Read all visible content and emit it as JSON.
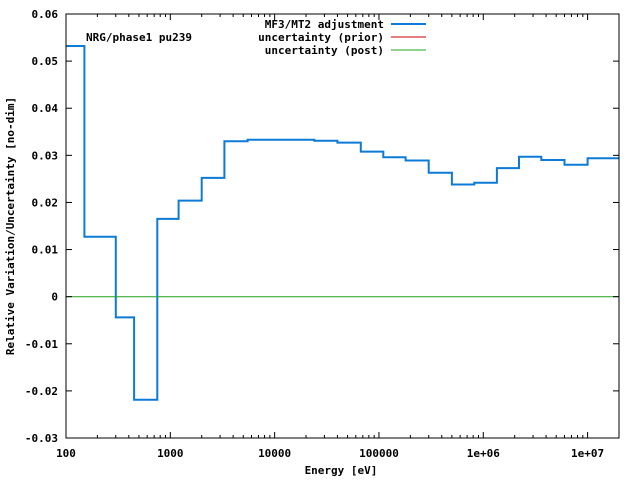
{
  "chart_data": {
    "type": "line",
    "title": "",
    "annotation": "NRG/phase1 pu239",
    "xlabel": "Energy [eV]",
    "ylabel": "Relative Variation/Uncertainty [no-dim]",
    "xscale": "log",
    "xlim": [
      100,
      20000000
    ],
    "ylim": [
      -0.03,
      0.06
    ],
    "grid": false,
    "legend_position": "top-center",
    "x_ticks": [
      {
        "value": 100,
        "label": "100"
      },
      {
        "value": 1000,
        "label": "1000"
      },
      {
        "value": 10000,
        "label": "10000"
      },
      {
        "value": 100000,
        "label": "100000"
      },
      {
        "value": 1000000,
        "label": "1e+06"
      },
      {
        "value": 10000000,
        "label": "1e+07"
      }
    ],
    "y_ticks": [
      {
        "value": -0.03,
        "label": "-0.03"
      },
      {
        "value": -0.02,
        "label": "-0.02"
      },
      {
        "value": -0.01,
        "label": "-0.01"
      },
      {
        "value": 0,
        "label": "0"
      },
      {
        "value": 0.01,
        "label": "0.01"
      },
      {
        "value": 0.02,
        "label": "0.02"
      },
      {
        "value": 0.03,
        "label": "0.03"
      },
      {
        "value": 0.04,
        "label": "0.04"
      },
      {
        "value": 0.05,
        "label": "0.05"
      },
      {
        "value": 0.06,
        "label": "0.06"
      }
    ],
    "series": [
      {
        "name": "MF3/MT2 adjustment",
        "color": "#0d7bd6",
        "style": "step",
        "bin_edges": [
          100,
          150,
          300,
          450,
          750,
          1200,
          2000,
          3300,
          5500,
          24000,
          40000,
          67000,
          110000,
          180000,
          300000,
          500000,
          820000,
          1350000,
          2200000,
          3600000,
          6000000,
          10000000,
          20000000
        ],
        "values": [
          0.0532,
          0.0127,
          -0.0044,
          -0.0219,
          0.0165,
          0.0204,
          0.0252,
          0.033,
          0.0333,
          0.0331,
          0.0327,
          0.0308,
          0.0296,
          0.0289,
          0.0263,
          0.0238,
          0.0242,
          0.0273,
          0.0297,
          0.029,
          0.028,
          0.0294
        ]
      },
      {
        "name": "uncertainty (prior)",
        "color": "#cc0000",
        "style": "step",
        "bin_edges": [],
        "values": []
      },
      {
        "name": "uncertainty (post)",
        "color": "#20a020",
        "style": "line",
        "x": [
          100,
          20000000
        ],
        "values": [
          0,
          0
        ]
      }
    ]
  }
}
